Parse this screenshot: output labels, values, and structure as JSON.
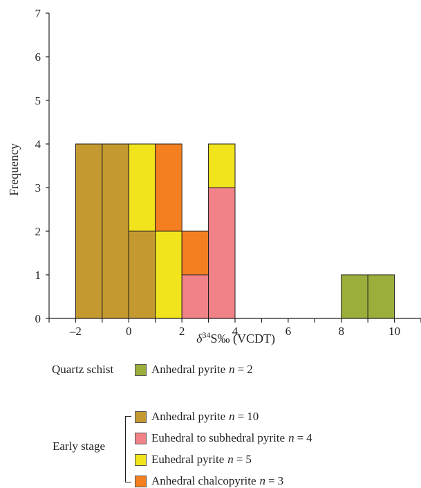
{
  "chart_data": {
    "type": "bar",
    "subtype": "stacked-histogram",
    "xlabel_parts": {
      "delta": "δ",
      "sup": "34",
      "rest": "S‰ (VCDT)"
    },
    "ylabel": "Frequency",
    "xlim": [
      -3,
      11
    ],
    "ylim": [
      0,
      7
    ],
    "x_ticks": [
      -2,
      0,
      2,
      4,
      6,
      8,
      10
    ],
    "x_tick_labels": [
      "–2",
      "0",
      "2",
      "4",
      "6",
      "8",
      "10"
    ],
    "y_ticks": [
      0,
      1,
      2,
      3,
      4,
      5,
      6,
      7
    ],
    "bin_width": 1,
    "bins": [
      {
        "x0": -2,
        "x1": -1,
        "stack": [
          {
            "series": "anhedral_pyrite_early",
            "count": 4
          }
        ]
      },
      {
        "x0": -1,
        "x1": 0,
        "stack": [
          {
            "series": "anhedral_pyrite_early",
            "count": 4
          }
        ]
      },
      {
        "x0": 0,
        "x1": 1,
        "stack": [
          {
            "series": "anhedral_pyrite_early",
            "count": 2
          },
          {
            "series": "euhedral_pyrite",
            "count": 2
          }
        ]
      },
      {
        "x0": 1,
        "x1": 2,
        "stack": [
          {
            "series": "euhedral_pyrite",
            "count": 2
          },
          {
            "series": "anhedral_chalcopyrite",
            "count": 2
          }
        ]
      },
      {
        "x0": 2,
        "x1": 3,
        "stack": [
          {
            "series": "euhedral_subhedral_pyrite",
            "count": 1
          },
          {
            "series": "anhedral_chalcopyrite",
            "count": 1
          }
        ]
      },
      {
        "x0": 3,
        "x1": 4,
        "stack": [
          {
            "series": "euhedral_subhedral_pyrite",
            "count": 3
          },
          {
            "series": "euhedral_pyrite",
            "count": 1
          }
        ]
      },
      {
        "x0": 8,
        "x1": 9,
        "stack": [
          {
            "series": "anhedral_pyrite_quartz",
            "count": 1
          }
        ]
      },
      {
        "x0": 9,
        "x1": 10,
        "stack": [
          {
            "series": "anhedral_pyrite_quartz",
            "count": 1
          }
        ]
      }
    ],
    "series_colors": {
      "anhedral_pyrite_quartz": "#9bae3b",
      "anhedral_pyrite_early": "#c49a30",
      "euhedral_subhedral_pyrite": "#f08288",
      "euhedral_pyrite": "#f1e31c",
      "anhedral_chalcopyrite": "#f47f20"
    },
    "grid": false
  },
  "legend": {
    "quartz_group_label": "Quartz schist",
    "early_group_label": "Early stage",
    "items": [
      {
        "key": "anhedral_pyrite_quartz",
        "label": "Anhedral pyrite",
        "n_symbol": "n",
        "eq": "=",
        "n": "2"
      },
      {
        "key": "anhedral_pyrite_early",
        "label": "Anhedral pyrite",
        "n_symbol": "n",
        "eq": "=",
        "n": "10"
      },
      {
        "key": "euhedral_subhedral_pyrite",
        "label": "Euhedral to subhedral pyrite",
        "n_symbol": "n",
        "eq": "=",
        "n": "4"
      },
      {
        "key": "euhedral_pyrite",
        "label": "Euhedral pyrite",
        "n_symbol": "n",
        "eq": "=",
        "n": "5"
      },
      {
        "key": "anhedral_chalcopyrite",
        "label": "Anhedral chalcopyrite",
        "n_symbol": "n",
        "eq": "=",
        "n": "3"
      }
    ]
  }
}
